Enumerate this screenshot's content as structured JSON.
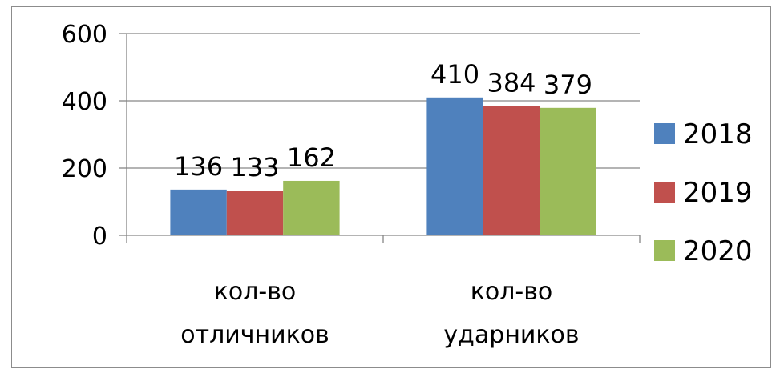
{
  "chart_data": {
    "type": "bar",
    "categories": [
      [
        "кол-во",
        "отличников"
      ],
      [
        "кол-во",
        "ударников"
      ]
    ],
    "series": [
      {
        "name": "2018",
        "color": "#4f81bd",
        "values": [
          136,
          410
        ]
      },
      {
        "name": "2019",
        "color": "#c0504d",
        "values": [
          133,
          384
        ]
      },
      {
        "name": "2020",
        "color": "#9bbb59",
        "values": [
          162,
          379
        ]
      }
    ],
    "ylim": [
      0,
      600
    ],
    "yticks": [
      0,
      200,
      400,
      600
    ],
    "grid": true,
    "legend_position": "right",
    "data_labels": true
  }
}
